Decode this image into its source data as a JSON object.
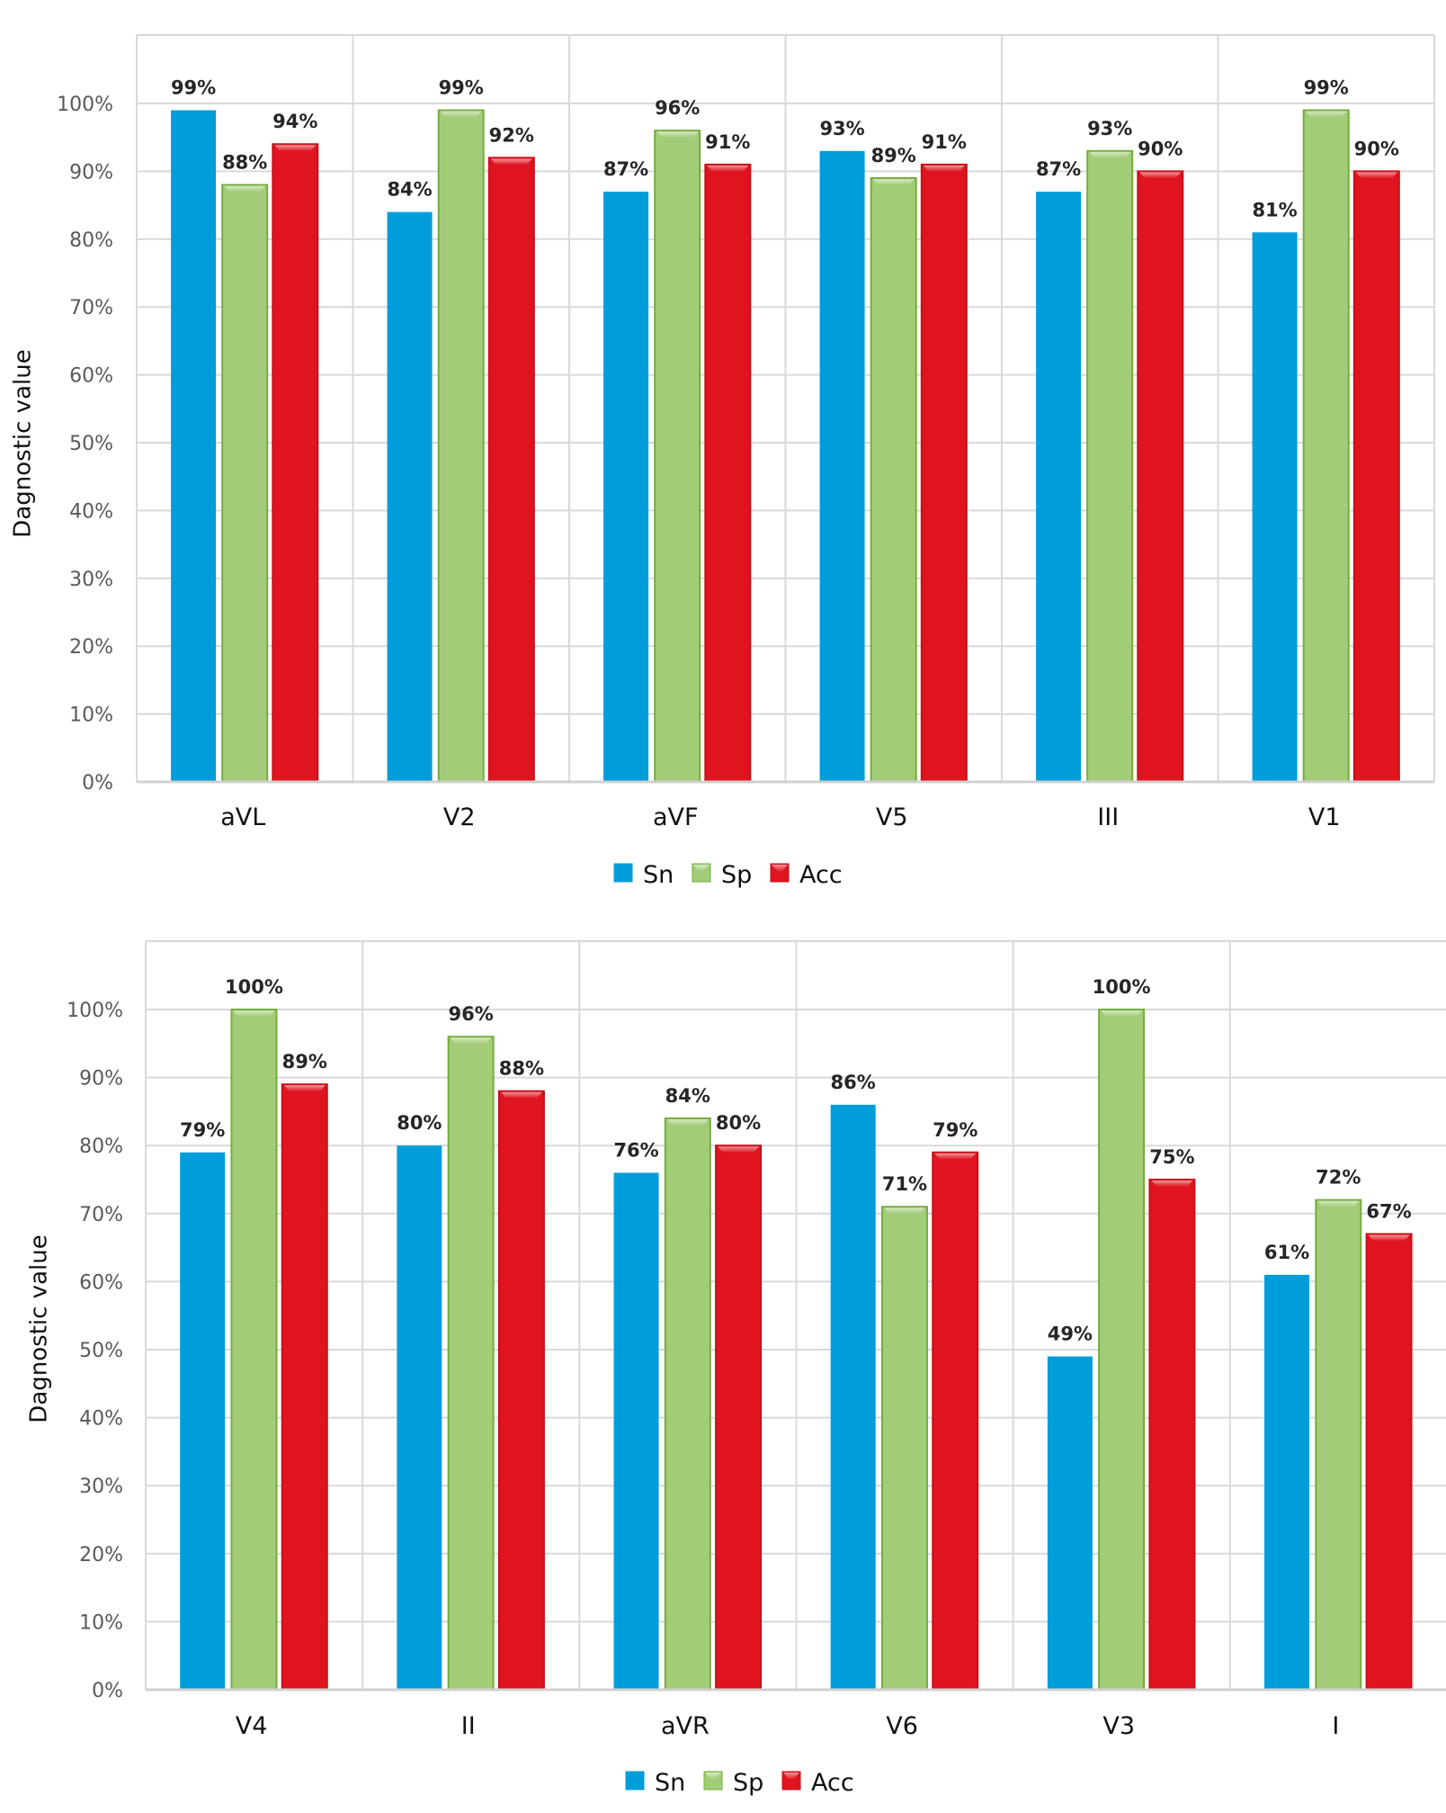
{
  "colors": {
    "Sn": "#009ddb",
    "Sp": "#a3cc78",
    "Sp_border": "#74ad3c",
    "Acc": "#e0141f",
    "Acc_border": "#c90f18"
  },
  "chart_data": [
    {
      "type": "bar",
      "title": "",
      "xlabel": "",
      "ylabel": "Dagnostic value",
      "ylim": [
        0,
        100
      ],
      "yticks": [
        "0%",
        "10%",
        "20%",
        "30%",
        "40%",
        "50%",
        "60%",
        "70%",
        "80%",
        "90%",
        "100%"
      ],
      "grid": true,
      "legend_position": "bottom-center",
      "categories": [
        "aVL",
        "V2",
        "aVF",
        "V5",
        "III",
        "V1"
      ],
      "series": [
        {
          "name": "Sn",
          "values": [
            99,
            84,
            87,
            93,
            87,
            81
          ],
          "labels": [
            "99%",
            "84%",
            "87%",
            "93%",
            "87%",
            "81%"
          ]
        },
        {
          "name": "Sp",
          "values": [
            88,
            99,
            96,
            89,
            93,
            99
          ],
          "labels": [
            "88%",
            "99%",
            "96%",
            "89%",
            "93%",
            "99%"
          ]
        },
        {
          "name": "Acc",
          "values": [
            94,
            92,
            91,
            91,
            90,
            90
          ],
          "labels": [
            "94%",
            "92%",
            "91%",
            "91%",
            "90%",
            "90%"
          ]
        }
      ],
      "legend": [
        "Sn",
        "Sp",
        "Acc"
      ]
    },
    {
      "type": "bar",
      "title": "",
      "xlabel": "",
      "ylabel": "Dagnostic value",
      "ylim": [
        0,
        100
      ],
      "yticks": [
        "0%",
        "10%",
        "20%",
        "30%",
        "40%",
        "50%",
        "60%",
        "70%",
        "80%",
        "90%",
        "100%"
      ],
      "grid": true,
      "legend_position": "bottom-center",
      "categories": [
        "V4",
        "II",
        "aVR",
        "V6",
        "V3",
        "I"
      ],
      "series": [
        {
          "name": "Sn",
          "values": [
            79,
            80,
            76,
            86,
            49,
            61
          ],
          "labels": [
            "79%",
            "80%",
            "76%",
            "86%",
            "49%",
            "61%"
          ]
        },
        {
          "name": "Sp",
          "values": [
            100,
            96,
            84,
            71,
            100,
            72
          ],
          "labels": [
            "100%",
            "96%",
            "84%",
            "71%",
            "100%",
            "72%"
          ]
        },
        {
          "name": "Acc",
          "values": [
            89,
            88,
            80,
            79,
            75,
            67
          ],
          "labels": [
            "89%",
            "88%",
            "80%",
            "79%",
            "75%",
            "67%"
          ]
        }
      ],
      "legend": [
        "Sn",
        "Sp",
        "Acc"
      ]
    }
  ]
}
